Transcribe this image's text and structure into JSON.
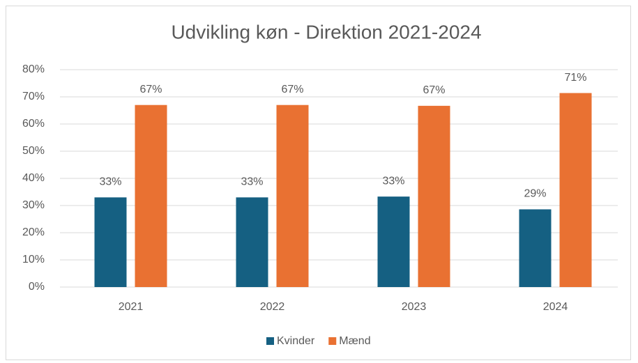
{
  "chart_data": {
    "type": "bar",
    "title": "Udvikling køn - Direktion 2021-2024",
    "categories": [
      "2021",
      "2022",
      "2023",
      "2024"
    ],
    "series": [
      {
        "name": "Kvinder",
        "color": "#156082",
        "values": [
          33,
          33,
          33.3,
          28.6
        ],
        "value_labels": [
          "33%",
          "33%",
          "33%",
          "29%"
        ]
      },
      {
        "name": "Mænd",
        "color": "#e97132",
        "values": [
          67,
          67,
          66.7,
          71.4
        ],
        "value_labels": [
          "67%",
          "67%",
          "67%",
          "71%"
        ]
      }
    ],
    "ylim": [
      0,
      80
    ],
    "yticks": [
      {
        "value": 0,
        "label": "0%"
      },
      {
        "value": 10,
        "label": "10%"
      },
      {
        "value": 20,
        "label": "20%"
      },
      {
        "value": 30,
        "label": "30%"
      },
      {
        "value": 40,
        "label": "40%"
      },
      {
        "value": 50,
        "label": "50%"
      },
      {
        "value": 60,
        "label": "60%"
      },
      {
        "value": 70,
        "label": "70%"
      },
      {
        "value": 80,
        "label": "80%"
      }
    ],
    "grid": true,
    "legend": "bottom"
  }
}
